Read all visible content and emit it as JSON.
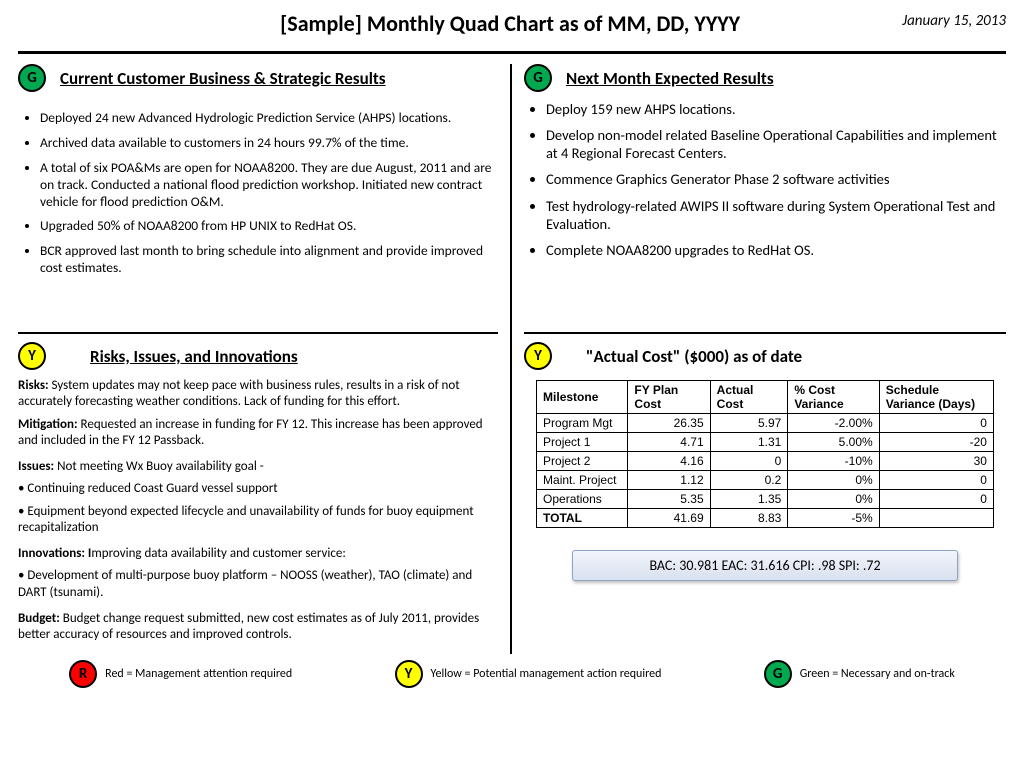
{
  "header": {
    "title": "[Sample] Monthly Quad Chart as of MM, DD, YYYY",
    "date": "January 15, 2013"
  },
  "colors": {
    "green": "#00a84f",
    "yellow": "#ffff00",
    "red": "#ff0000",
    "black": "#000000",
    "metrics_bg_top": "#f2f5fb",
    "metrics_bg_bot": "#d9e1ef",
    "metrics_border": "#8ea3c8"
  },
  "q1": {
    "badge": "G",
    "title": "Current Customer Business & Strategic Results",
    "bullets": [
      "Deployed 24 new Advanced Hydrologic Prediction Service (AHPS) locations.",
      "Archived data available to customers in 24 hours 99.7% of the time.",
      "A total of six POA&Ms are open for NOAA8200.  They are due August, 2011 and are on track.  Conducted a national flood prediction workshop.  Initiated new contract vehicle for flood prediction O&M.",
      "Upgraded 50% of NOAA8200 from HP UNIX to RedHat OS.",
      "BCR approved last month to bring schedule into alignment and provide improved cost estimates."
    ]
  },
  "q2": {
    "badge": "G",
    "title": "Next Month Expected Results",
    "bullets": [
      "Deploy 159 new AHPS locations.",
      "Develop non-model related Baseline Operational Capabilities and implement at 4 Regional Forecast Centers.",
      "Commence Graphics Generator Phase 2 software activities",
      "Test hydrology-related AWIPS II software during System Operational Test and Evaluation.",
      "Complete NOAA8200 upgrades to RedHat OS."
    ]
  },
  "q3": {
    "badge": "Y",
    "title": "Risks, Issues, and Innovations",
    "risks_label": "Risks:",
    "risks_text": " System updates may not keep pace with business rules, results in a risk of not accurately forecasting weather conditions.  Lack of funding for this effort.",
    "mitigation_label": "Mitigation:",
    "mitigation_text": "  Requested an increase in funding for FY 12.  This increase has been approved and included in the FY 12 Passback.",
    "issues_label": "Issues:",
    "issues_text": "   Not meeting Wx Buoy availability goal -",
    "issues_b1": "• Continuing reduced Coast Guard vessel support",
    "issues_b2": "• Equipment beyond expected lifecycle and unavailability of  funds for buoy equipment recapitalization",
    "innov_label": "Innovations:  I",
    "innov_text": "mproving data availability and customer service:",
    "innov_b1": "• Development of multi-purpose buoy platform – NOOSS (weather), TAO (climate) and DART (tsunami).",
    "budget_label": "Budget:",
    "budget_text": "  Budget change request submitted, new cost estimates as of July 2011, provides better accuracy of resources and improved controls."
  },
  "q4": {
    "badge": "Y",
    "title": "\"Actual Cost\" ($000) as of date",
    "table": {
      "headers": [
        "Milestone",
        "FY Plan Cost",
        "Actual Cost",
        "% Cost Variance",
        "Schedule Variance (Days)"
      ],
      "rows": [
        [
          "Program Mgt",
          "26.35",
          "5.97",
          "-2.00%",
          "0"
        ],
        [
          "Project 1",
          "4.71",
          "1.31",
          "5.00%",
          "-20"
        ],
        [
          "Project 2",
          "4.16",
          "0",
          "-10%",
          "30"
        ],
        [
          "Maint. Project",
          "1.12",
          "0.2",
          "0%",
          "0"
        ],
        [
          "Operations",
          "5.35",
          "1.35",
          "0%",
          "0"
        ]
      ],
      "total_label": "TOTAL",
      "total": [
        "41.69",
        "8.83",
        "-5%",
        ""
      ]
    },
    "metrics": "BAC: 30.981     EAC: 31.616  CPI: .98   SPI: .72"
  },
  "legend": {
    "r": {
      "badge": "R",
      "text": "Red = Management attention required"
    },
    "y": {
      "badge": "Y",
      "text": "Yellow = Potential management action required"
    },
    "g": {
      "badge": "G",
      "text": "Green = Necessary and on-track"
    }
  }
}
